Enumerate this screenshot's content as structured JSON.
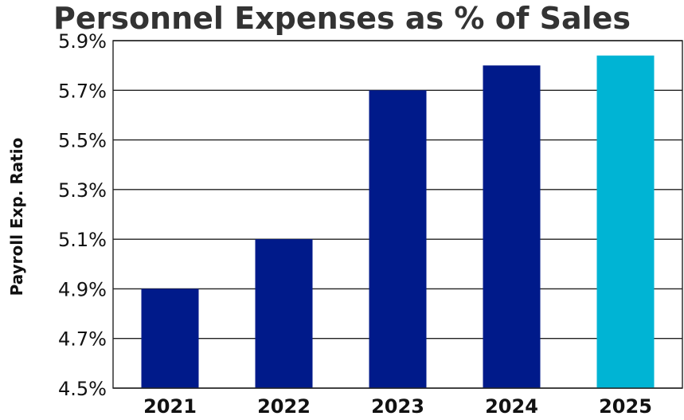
{
  "chart_data": {
    "type": "bar",
    "title": "Personnel Expenses as % of Sales",
    "ylabel": "Payroll Exp. Ratio",
    "xlabel": "",
    "categories": [
      "2021",
      "2022",
      "2023",
      "2024",
      "2025"
    ],
    "values": [
      4.9,
      5.1,
      5.7,
      5.8,
      5.84
    ],
    "ylim": [
      4.5,
      5.9
    ],
    "yticks": [
      4.5,
      4.7,
      4.9,
      5.1,
      5.3,
      5.5,
      5.7,
      5.9
    ],
    "ytick_labels": [
      "4.5%",
      "4.7%",
      "4.9%",
      "5.1%",
      "5.3%",
      "5.5%",
      "5.7%",
      "5.9%"
    ],
    "grid": true,
    "bar_colors": [
      "#001a8a",
      "#001a8a",
      "#001a8a",
      "#001a8a",
      "#00b4d4"
    ]
  }
}
